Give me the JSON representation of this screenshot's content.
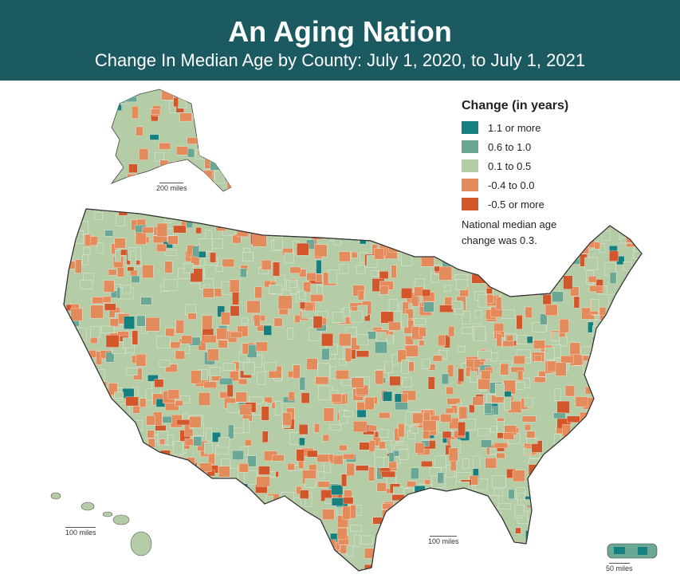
{
  "header": {
    "title": "An Aging Nation",
    "subtitle": "Change In Median Age by County: July 1, 2020, to July 1, 2021"
  },
  "legend": {
    "title": "Change (in years)",
    "items": [
      {
        "label": "1.1 or more",
        "color": "#16807f"
      },
      {
        "label": "0.6 to 1.0",
        "color": "#6aa795"
      },
      {
        "label": "0.1 to 0.5",
        "color": "#b5cda6"
      },
      {
        "label": "-0.4 to 0.0",
        "color": "#e48b5c"
      },
      {
        "label": "-0.5 or more",
        "color": "#d2582c"
      }
    ],
    "note": "National median age change was 0.3."
  },
  "scales": {
    "alaska": "200 miles",
    "hawaii": "100 miles",
    "conus": "100 miles",
    "puerto_rico": "50 miles"
  },
  "colors": {
    "header_bg": "#1b5a61",
    "border": "#333333"
  }
}
